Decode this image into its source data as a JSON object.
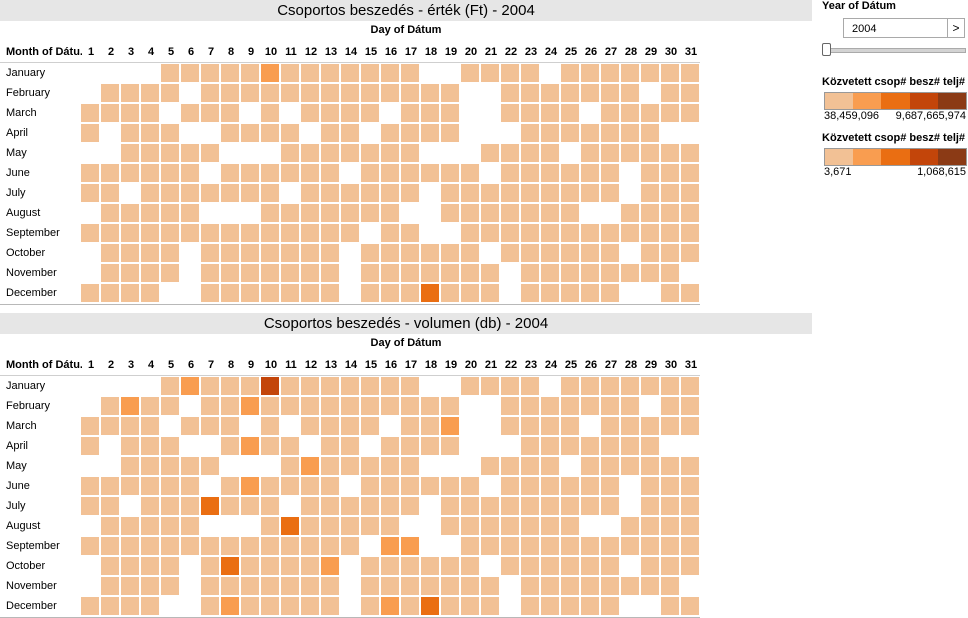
{
  "sidebar": {
    "year_label": "Year of Dátum",
    "year_value": "2004",
    "next_label": ">",
    "legend1": {
      "title": "Közvetett csop# besz# telj# ...",
      "min": "38,459,096",
      "max": "9,687,665,974"
    },
    "legend2": {
      "title": "Közvetett csop# besz# telj# ...",
      "min": "3,671",
      "max": "1,068,615"
    },
    "legend_colors": [
      "#f2c195",
      "#f99d50",
      "#ea6e12",
      "#c3450a",
      "#8b3a15"
    ]
  },
  "days": [
    "1",
    "2",
    "3",
    "4",
    "5",
    "6",
    "7",
    "8",
    "9",
    "10",
    "11",
    "12",
    "13",
    "14",
    "15",
    "16",
    "17",
    "18",
    "19",
    "20",
    "21",
    "22",
    "23",
    "24",
    "25",
    "26",
    "27",
    "28",
    "29",
    "30",
    "31"
  ],
  "months": [
    "January",
    "February",
    "March",
    "April",
    "May",
    "June",
    "July",
    "August",
    "September",
    "October",
    "November",
    "December"
  ],
  "charts": [
    {
      "title": "Csoportos beszedés - érték (Ft) - 2004",
      "column_axis": "Day of Dátum",
      "row_axis": "Month of Dátu..",
      "cells": [
        "....1111121111111..1111.11111111.",
        ".1111.1111111111111..1111111.111...",
        "1111.111.1.1111.111..1111.1111111",
        "1.111..1111.11.1111...1111111..1111",
        "..11111...1111111...1111.111111..",
        "111111.111111.111111.111111.1111",
        "11.1111111.111111.111111111.1111",
        ".11111...1111111..1111111..11111.1",
        "11111111111111.11..11111111111111",
        ".1111.1111111.111111.111111.1111",
        ".1111.1111111.1111111.11111111.1",
        "1111..1111111.1113111.11111..111111"
      ]
    },
    {
      "title": "Csoportos beszedés - volumen (db) - 2004",
      "column_axis": "Day of Dátum",
      "row_axis": "Month of Dátu..",
      "cells": [
        "....1211141111111..1111.11111111.",
        ".1211.1121111111111..1111111.111...",
        "1111.111.1.1111.112..1111.1111111",
        "1.111..1211.11.1111...1111111..1111",
        "..11111...1211111...1111.111111..",
        "111111.121111.111111.111111.1111",
        "11.1113111.111111.111111111.1111",
        ".11111...1311111..1111111..11111.1",
        "11111111111111.22..11111111111111",
        ".1111.1311112.111111.111111.1111",
        ".1111.1111111.1111111.11111111.1",
        "1111..1211111.1213111.11111..111111"
      ]
    }
  ],
  "chart_data": [
    {
      "type": "heatmap",
      "title": "Csoportos beszedés - érték (Ft) - 2004",
      "xlabel": "Day of Dátum",
      "ylabel": "Month of Dátum",
      "x": [
        "1",
        "2",
        "3",
        "4",
        "5",
        "6",
        "7",
        "8",
        "9",
        "10",
        "11",
        "12",
        "13",
        "14",
        "15",
        "16",
        "17",
        "18",
        "19",
        "20",
        "21",
        "22",
        "23",
        "24",
        "25",
        "26",
        "27",
        "28",
        "29",
        "30",
        "31"
      ],
      "y": [
        "January",
        "February",
        "March",
        "April",
        "May",
        "June",
        "July",
        "August",
        "September",
        "October",
        "November",
        "December"
      ],
      "color_range": [
        38459096,
        9687665974
      ]
    },
    {
      "type": "heatmap",
      "title": "Csoportos beszedés - volumen (db) - 2004",
      "xlabel": "Day of Dátum",
      "ylabel": "Month of Dátum",
      "x": [
        "1",
        "2",
        "3",
        "4",
        "5",
        "6",
        "7",
        "8",
        "9",
        "10",
        "11",
        "12",
        "13",
        "14",
        "15",
        "16",
        "17",
        "18",
        "19",
        "20",
        "21",
        "22",
        "23",
        "24",
        "25",
        "26",
        "27",
        "28",
        "29",
        "30",
        "31"
      ],
      "y": [
        "January",
        "February",
        "March",
        "April",
        "May",
        "June",
        "July",
        "August",
        "September",
        "October",
        "November",
        "December"
      ],
      "color_range": [
        3671,
        1068615
      ]
    }
  ]
}
